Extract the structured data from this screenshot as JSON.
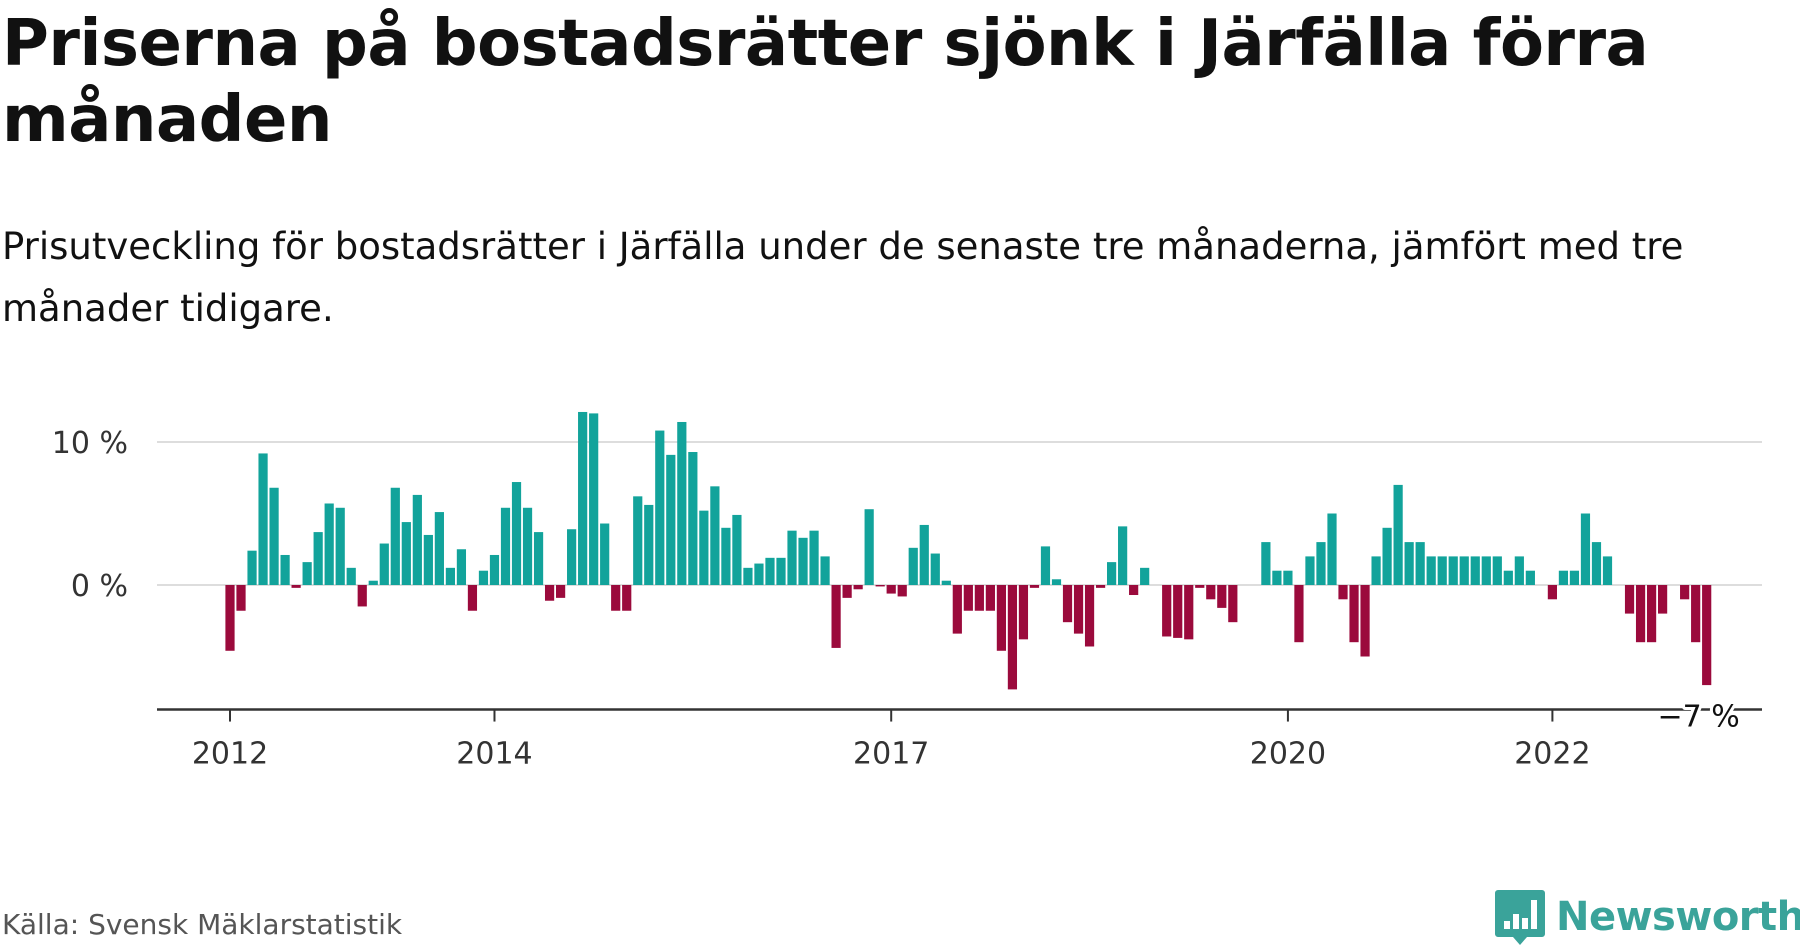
{
  "title": "Priserna på bostadsrätter sjönk i Järfälla förra månaden",
  "subtitle": "Prisutveckling för bostadsrätter i Järfälla under de senaste tre månaderna, jämfört med tre månader tidigare.",
  "source": "Källa: Svensk Mäklarstatistik",
  "brand": "Newsworthy",
  "colors": {
    "positive": "#12a39b",
    "negative": "#9b0a3c",
    "grid": "#dddddd",
    "axis": "#333333",
    "brand": "#3aa39a"
  },
  "chart_data": {
    "type": "bar",
    "unit": "%",
    "start": "2012-01",
    "ylim": [
      -8.5,
      12.5
    ],
    "yticks": [
      {
        "value": 0,
        "label": "0 %"
      },
      {
        "value": 10,
        "label": "10 %"
      }
    ],
    "xticks": [
      {
        "month": "2012-01",
        "label": "2012"
      },
      {
        "month": "2014-01",
        "label": "2014"
      },
      {
        "month": "2017-01",
        "label": "2017"
      },
      {
        "month": "2020-01",
        "label": "2020"
      },
      {
        "month": "2022-01",
        "label": "2022"
      }
    ],
    "last_label": "−7 %",
    "values": [
      -4.6,
      -1.8,
      2.4,
      9.2,
      6.8,
      2.1,
      -0.2,
      1.6,
      3.7,
      5.7,
      5.4,
      1.2,
      -1.5,
      0.3,
      2.9,
      6.8,
      4.4,
      6.3,
      3.5,
      5.1,
      1.2,
      2.5,
      -1.8,
      1.0,
      2.1,
      5.4,
      7.2,
      5.4,
      3.7,
      -1.1,
      -0.9,
      3.9,
      12.1,
      12.0,
      4.3,
      -1.8,
      -1.8,
      6.2,
      5.6,
      10.8,
      9.1,
      11.4,
      9.3,
      5.2,
      6.9,
      4.0,
      4.9,
      1.2,
      1.5,
      1.9,
      1.9,
      3.8,
      3.3,
      3.8,
      2.0,
      -4.4,
      -0.9,
      -0.3,
      5.3,
      -0.1,
      -0.6,
      -0.8,
      2.6,
      4.2,
      2.2,
      0.3,
      -3.4,
      -1.8,
      -1.8,
      -1.8,
      -4.6,
      -7.3,
      -3.8,
      -0.2,
      2.7,
      0.4,
      -2.6,
      -3.4,
      -4.3,
      -0.2,
      1.6,
      4.1,
      -0.7,
      1.2,
      0.0,
      -3.6,
      -3.7,
      -3.8,
      -0.2,
      -1.0,
      -1.6,
      -2.6,
      0.0,
      0.0,
      3.0,
      1.0,
      1.0,
      -4.0,
      2.0,
      3.0,
      5.0,
      -1.0,
      -4.0,
      -5.0,
      2.0,
      4.0,
      7.0,
      3.0,
      3.0,
      2.0,
      2.0,
      2.0,
      2.0,
      2.0,
      2.0,
      2.0,
      1.0,
      2.0,
      1.0,
      0.0,
      -1.0,
      1.0,
      1.0,
      5.0,
      3.0,
      2.0,
      0.0,
      -2.0,
      -4.0,
      -4.0,
      -2.0,
      0.0,
      -1.0,
      -4.0,
      -7.0
    ]
  }
}
